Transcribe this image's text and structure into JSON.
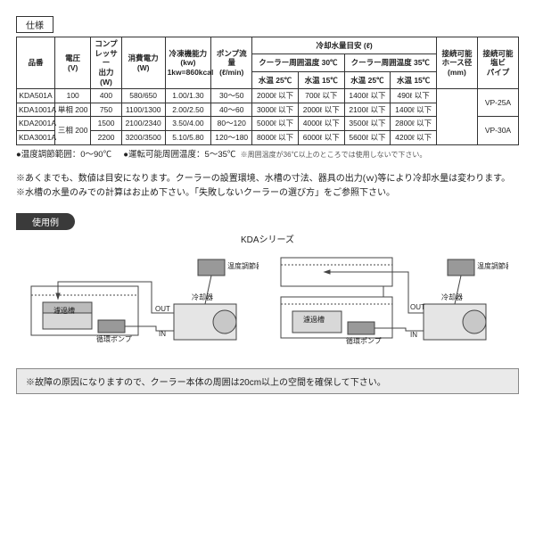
{
  "spec_title": "仕様",
  "headers": {
    "product": "品番",
    "voltage": "電圧\n(V)",
    "compressor": "コンプ\nレッサー\n出力\n(W)",
    "power": "消費電力\n(W)",
    "cooling": "冷凍機能力\n(kw)\n1kw=860kcal",
    "pump": "ポンプ流量\n(ℓ/min)",
    "coolwater": "冷却水量目安 (ℓ)",
    "amb30": "クーラー周囲温度 30℃",
    "amb35": "クーラー周囲温度 35℃",
    "wt25": "水温 25℃",
    "wt15": "水温 15℃",
    "hose": "接続可能\nホース径\n(mm)",
    "pipe": "接続可能\n塩ビ\nパイプ"
  },
  "rows": [
    {
      "product": "KDA501A",
      "voltage": "100",
      "compressor": "400",
      "power": "580/650",
      "cooling": "1.00/1.30",
      "pump": "30～50",
      "w30_25": "2000ℓ 以下",
      "w30_15": "700ℓ 以下",
      "w35_25": "1400ℓ 以下",
      "w35_15": "490ℓ 以下",
      "hose": "",
      "pipe": "VP-25A"
    },
    {
      "product": "KDA1001A",
      "voltage": "単相 200",
      "compressor": "750",
      "power": "1100/1300",
      "cooling": "2.00/2.50",
      "pump": "40～60",
      "w30_25": "3000ℓ 以下",
      "w30_15": "2000ℓ 以下",
      "w35_25": "2100ℓ 以下",
      "w35_15": "1400ℓ 以下",
      "hose": "",
      "pipe": ""
    },
    {
      "product": "KDA2001A",
      "voltage": "三相 200",
      "compressor": "1500",
      "power": "2100/2340",
      "cooling": "3.50/4.00",
      "pump": "80～120",
      "w30_25": "5000ℓ 以下",
      "w30_15": "4000ℓ 以下",
      "w35_25": "3500ℓ 以下",
      "w35_15": "2800ℓ 以下",
      "hose": "",
      "pipe": "VP-30A"
    },
    {
      "product": "KDA3001A",
      "voltage": "",
      "compressor": "2200",
      "power": "3200/3500",
      "cooling": "5.10/5.80",
      "pump": "120～180",
      "w30_25": "8000ℓ 以下",
      "w30_15": "6000ℓ 以下",
      "w35_25": "5600ℓ 以下",
      "w35_15": "4200ℓ 以下",
      "hose": "",
      "pipe": ""
    }
  ],
  "notes": {
    "n1": "●温度調節範囲：0～90℃",
    "n2": "●運転可能周囲温度：5～35℃",
    "n2s": "※周囲温度が36℃以上のところでは使用しないで下さい。"
  },
  "warnings": {
    "w1": "※あくまでも、数値は目安になります。クーラーの設置環境、水槽の寸法、器具の出力(ｗ)等により冷却水量は変わります。",
    "w2": "※水槽の水量のみでの計算はお止め下さい。「失敗しないクーラーの選び方」をご参照下さい。"
  },
  "example_label": "使用例",
  "series_label": "KDAシリーズ",
  "diagram_labels": {
    "filter": "濾過槽",
    "pump": "循環ポンプ",
    "chiller": "冷却器",
    "controller": "温度調節器",
    "out": "OUT",
    "in": "IN"
  },
  "footer": "※故障の原因になりますので、クーラー本体の周囲は20cm以上の空間を確保して下さい。",
  "colors": {
    "border": "#333333",
    "bg": "#ffffff",
    "example_bg": "#3a3a3a",
    "footer_bg": "#eaeaea",
    "svg_stroke": "#444444",
    "svg_fill": "#999999",
    "svg_light": "#d8d8d8"
  }
}
